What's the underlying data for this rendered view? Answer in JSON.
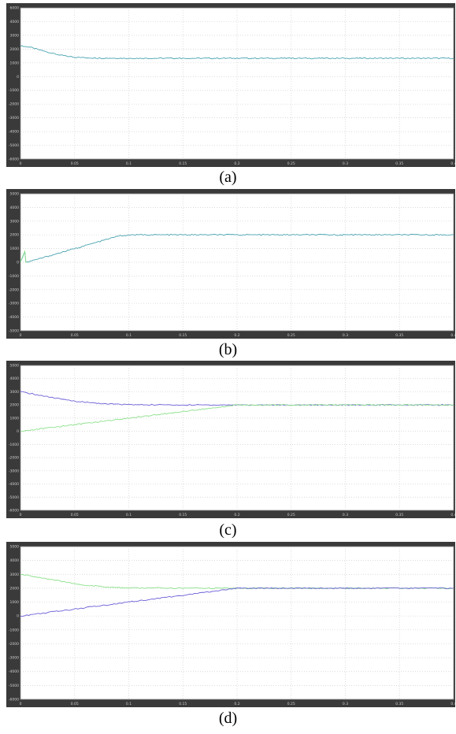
{
  "chart_data": [
    {
      "type": "line",
      "caption": "(a)",
      "xlim": [
        0,
        0.4
      ],
      "ylim": [
        -6000,
        6000
      ],
      "x_ticks": [
        "0",
        "0.05",
        "0.1",
        "0.15",
        "0.2",
        "0.25",
        "0.3",
        "0.35",
        "0.4"
      ],
      "y_ticks": [
        "6000",
        "4000",
        "3000",
        "2000",
        "1000",
        "0",
        "-1000",
        "-2000",
        "-3000",
        "-4000",
        "-5000",
        "-6000"
      ],
      "grid": true,
      "series": [
        {
          "color": "#4aa3b0",
          "x": [
            0,
            0.01,
            0.02,
            0.03,
            0.04,
            0.05,
            0.07,
            0.1,
            0.15,
            0.2,
            0.25,
            0.3,
            0.35,
            0.4
          ],
          "y": [
            3000,
            2850,
            2600,
            2380,
            2200,
            2080,
            2020,
            2000,
            2000,
            2000,
            2000,
            2000,
            2000,
            2000
          ]
        }
      ]
    },
    {
      "type": "line",
      "caption": "(b)",
      "xlim": [
        0,
        0.4
      ],
      "ylim": [
        -5000,
        5000
      ],
      "x_ticks": [
        "0",
        "0.05",
        "0.1",
        "0.15",
        "0.2",
        "0.25",
        "0.3",
        "0.35",
        "0.4"
      ],
      "y_ticks": [
        "5000",
        "4000",
        "3000",
        "2000",
        "1000",
        "0",
        "-1000",
        "-2000",
        "-3000",
        "-4000",
        "-5000"
      ],
      "grid": true,
      "series": [
        {
          "color": "#4aa3b0",
          "x": [
            0,
            0.004,
            0.005,
            0.006,
            0.09,
            0.1,
            0.2,
            0.3,
            0.4
          ],
          "y": [
            0,
            800,
            0,
            0,
            1900,
            2000,
            2000,
            2000,
            2000
          ]
        },
        {
          "color": "#8be08b",
          "x": [
            0,
            0.004,
            0.005,
            0.006
          ],
          "y": [
            0,
            800,
            0,
            0
          ]
        }
      ]
    },
    {
      "type": "line",
      "caption": "(c)",
      "xlim": [
        0,
        0.4
      ],
      "ylim": [
        -6000,
        5000
      ],
      "x_ticks": [
        "0",
        "0.05",
        "0.1",
        "0.15",
        "0.2",
        "0.25",
        "0.3",
        "0.35",
        "0.4"
      ],
      "y_ticks": [
        "5000",
        "4000",
        "3000",
        "2000",
        "1000",
        "0",
        "-1000",
        "-2000",
        "-3000",
        "-4000",
        "-5000",
        "-6000"
      ],
      "grid": true,
      "series": [
        {
          "color": "#6b5fd6",
          "x": [
            0,
            0.02,
            0.04,
            0.06,
            0.08,
            0.1,
            0.15,
            0.2,
            0.25,
            0.3,
            0.35,
            0.4
          ],
          "y": [
            3000,
            2700,
            2400,
            2200,
            2080,
            2020,
            2000,
            2000,
            2000,
            2000,
            2000,
            2000
          ]
        },
        {
          "color": "#8be08b",
          "x": [
            0,
            0.05,
            0.1,
            0.15,
            0.2,
            0.25,
            0.3,
            0.35,
            0.4
          ],
          "y": [
            0,
            500,
            1000,
            1500,
            2000,
            2000,
            2000,
            2000,
            2000
          ]
        }
      ]
    },
    {
      "type": "line",
      "caption": "(d)",
      "xlim": [
        0,
        0.4
      ],
      "ylim": [
        -6000,
        5000
      ],
      "x_ticks": [
        "0",
        "0.05",
        "0.1",
        "0.15",
        "0.2",
        "0.25",
        "0.3",
        "0.35",
        "0.4"
      ],
      "y_ticks": [
        "5000",
        "4000",
        "3000",
        "2000",
        "1000",
        "0",
        "-1000",
        "-2000",
        "-3000",
        "-4000",
        "-5000",
        "-6000"
      ],
      "grid": true,
      "series": [
        {
          "color": "#8be08b",
          "x": [
            0,
            0.02,
            0.04,
            0.06,
            0.08,
            0.1,
            0.15,
            0.2,
            0.25,
            0.3,
            0.35,
            0.4
          ],
          "y": [
            3000,
            2750,
            2450,
            2220,
            2080,
            2020,
            2000,
            2000,
            2000,
            2000,
            2000,
            2000
          ]
        },
        {
          "color": "#6b5fd6",
          "x": [
            0,
            0.05,
            0.1,
            0.15,
            0.2,
            0.25,
            0.3,
            0.35,
            0.4
          ],
          "y": [
            0,
            500,
            1000,
            1500,
            2000,
            2000,
            2000,
            2000,
            2000
          ]
        }
      ]
    }
  ]
}
